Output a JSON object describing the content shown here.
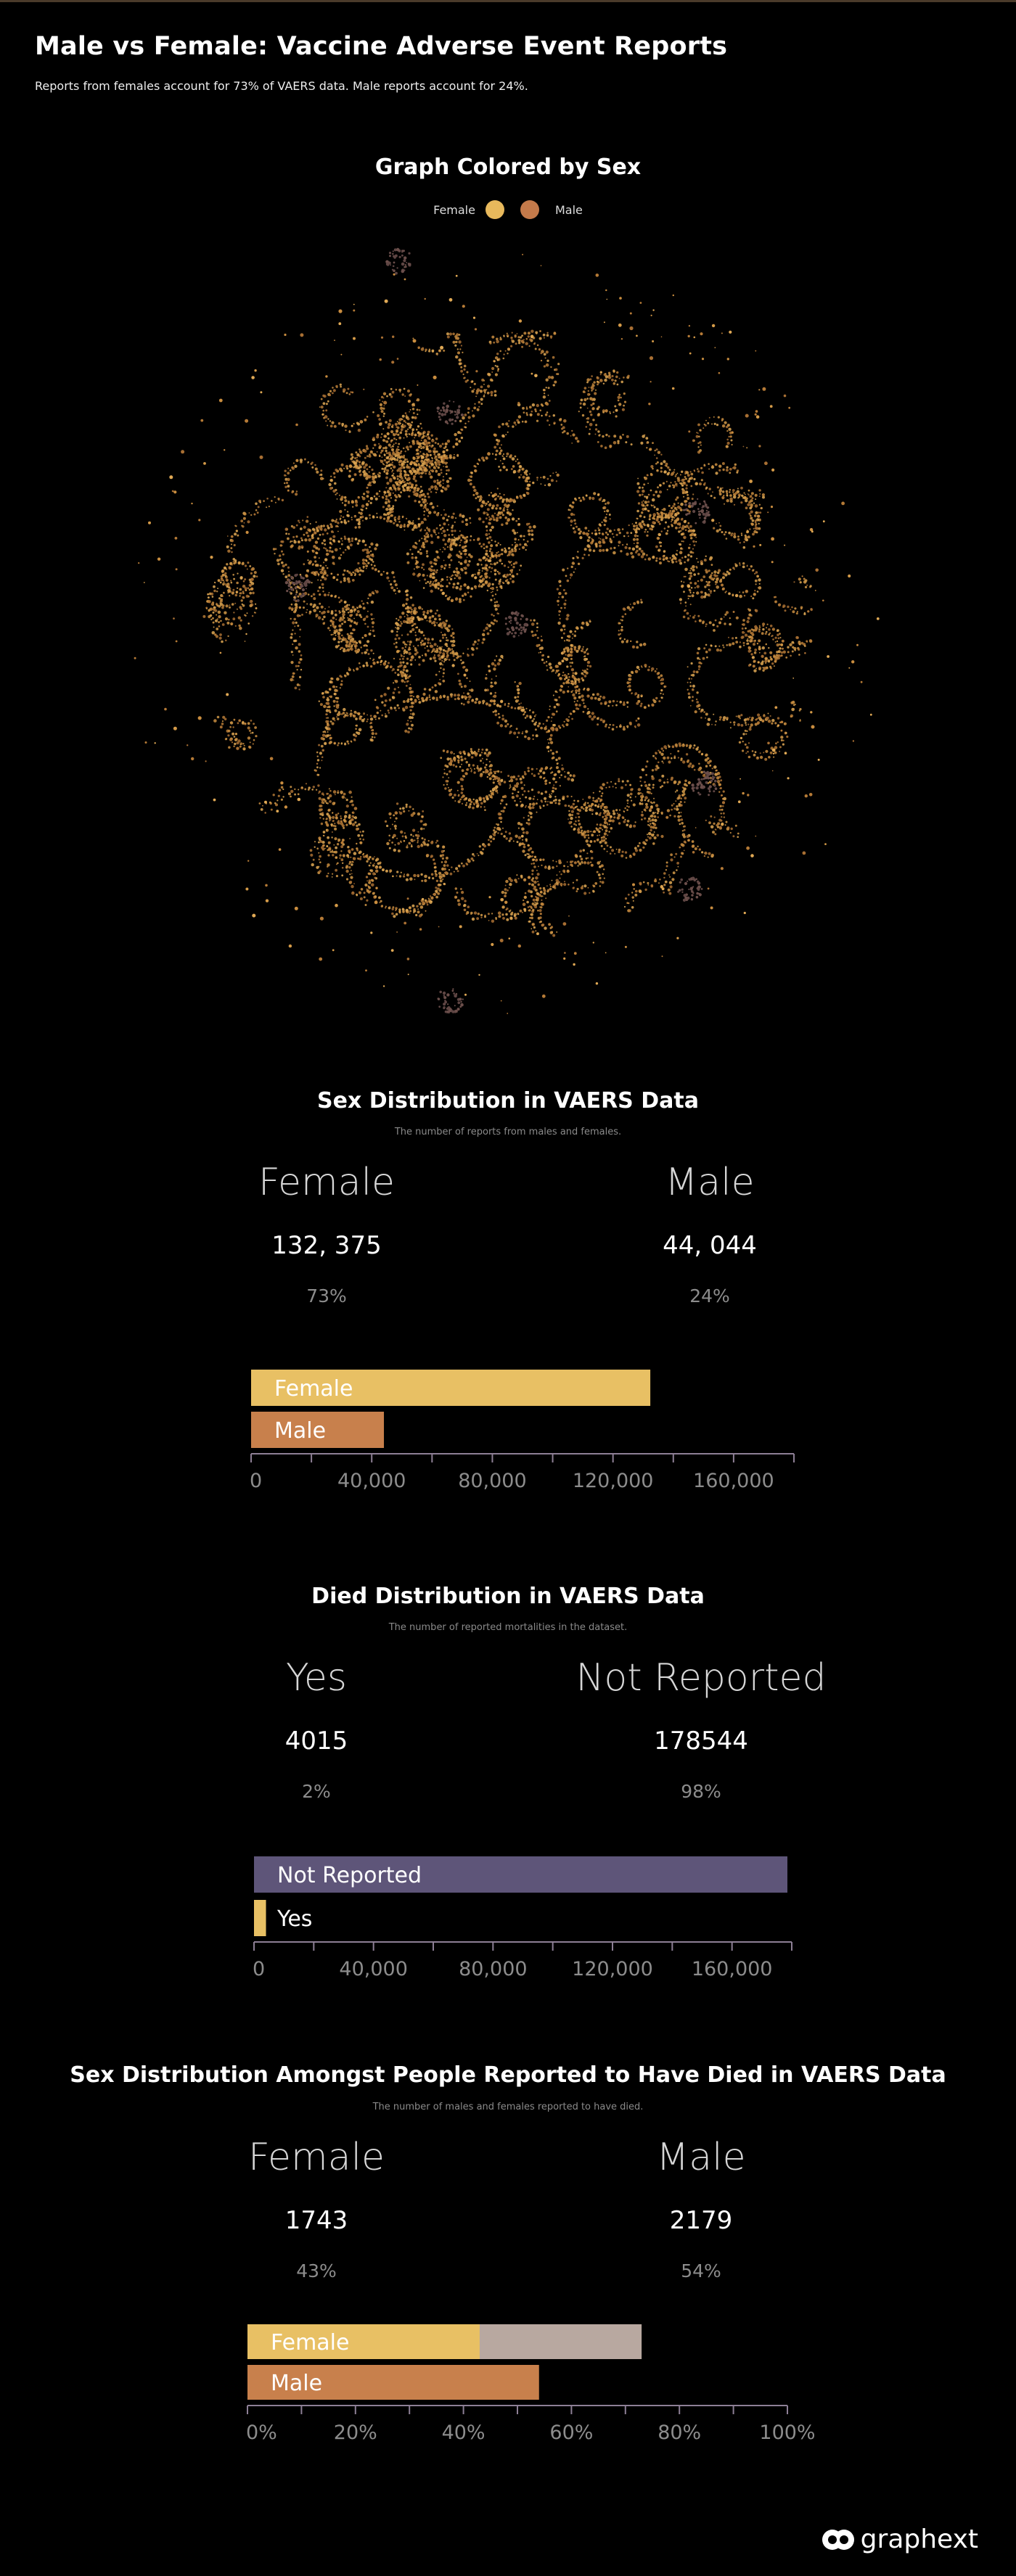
{
  "header": {
    "title": "Male vs Female: Vaccine Adverse Event Reports",
    "subtitle": "Reports from females account for 73% of VAERS data. Male reports account for 24%."
  },
  "graph": {
    "title": "Graph Colored by Sex",
    "legend": [
      {
        "label": "Female",
        "color": "#e8b95c"
      },
      {
        "label": "Male",
        "color": "#c47a4a"
      }
    ]
  },
  "sex_distribution": {
    "title": "Sex Distribution in VAERS Data",
    "description": "The number of reports from males and females.",
    "stats": [
      {
        "label": "Female",
        "value": "132, 375",
        "pct": "73%"
      },
      {
        "label": "Male",
        "value": "44, 044",
        "pct": "24%"
      }
    ]
  },
  "died_distribution": {
    "title": "Died Distribution in VAERS Data",
    "description": "The number of reported mortalities in the dataset.",
    "stats": [
      {
        "label": "Yes",
        "value": "4015",
        "pct": "2%"
      },
      {
        "label": "Not Reported",
        "value": "178544",
        "pct": "98%"
      }
    ]
  },
  "died_sex_distribution": {
    "title": "Sex Distribution Amongst People Reported to Have Died  in VAERS Data",
    "description": "The number of males and females reported to have died.",
    "stats": [
      {
        "label": "Female",
        "value": "1743",
        "pct": "43%"
      },
      {
        "label": "Male",
        "value": "2179",
        "pct": "54%"
      }
    ]
  },
  "chart_data": [
    {
      "type": "bar",
      "orientation": "horizontal",
      "categories": [
        "Female",
        "Male"
      ],
      "values": [
        132375,
        44044
      ],
      "colors": [
        "#e8c064",
        "#c8804c"
      ],
      "xlim": [
        0,
        180000
      ],
      "xticks": [
        "0",
        "40,000",
        "80,000",
        "120,000",
        "160,000"
      ],
      "xtick_values": [
        0,
        40000,
        80000,
        120000,
        160000
      ]
    },
    {
      "type": "bar",
      "orientation": "horizontal",
      "categories": [
        "Not Reported",
        "Yes"
      ],
      "values": [
        178544,
        4015
      ],
      "colors": [
        "#5e5579",
        "#e8c064"
      ],
      "xlim": [
        0,
        180000
      ],
      "xticks": [
        "0",
        "40,000",
        "80,000",
        "120,000",
        "160,000"
      ],
      "xtick_values": [
        0,
        40000,
        80000,
        120000,
        160000
      ]
    },
    {
      "type": "bar",
      "orientation": "horizontal",
      "categories": [
        "Female",
        "Male"
      ],
      "values": [
        43,
        54
      ],
      "background_values": [
        73,
        24
      ],
      "colors": [
        "#e8c064",
        "#c8804c"
      ],
      "background_color": "#b8a8a0",
      "xlim": [
        0,
        100
      ],
      "xticks": [
        "0%",
        "20%",
        "40%",
        "60%",
        "80%",
        "100%"
      ],
      "xtick_values": [
        0,
        20,
        40,
        60,
        80,
        100
      ]
    }
  ],
  "footer": {
    "logo_text": "graphext"
  }
}
